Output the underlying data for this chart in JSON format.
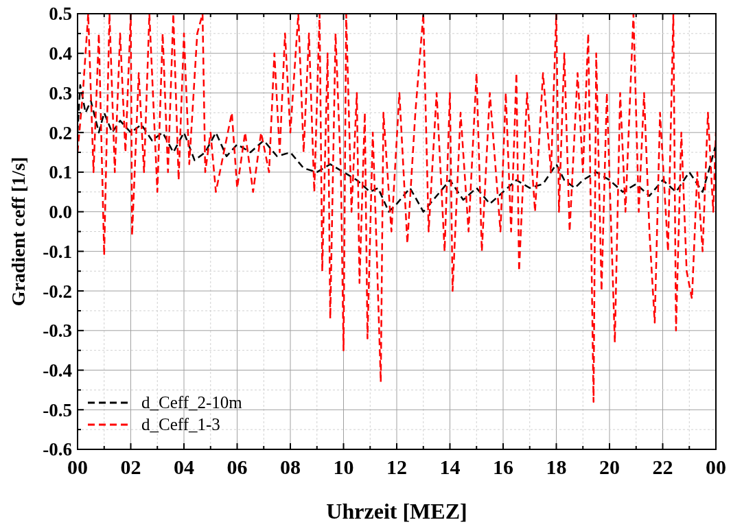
{
  "chart_data": {
    "type": "line",
    "xlabel": "Uhrzeit [MEZ]",
    "ylabel": "Gradient ceff [1/s]",
    "xlim": [
      0,
      24
    ],
    "ylim": [
      -0.6,
      0.5
    ],
    "xticks": [
      {
        "value": 0,
        "label": "00"
      },
      {
        "value": 1,
        "label": null
      },
      {
        "value": 2,
        "label": "02"
      },
      {
        "value": 3,
        "label": null
      },
      {
        "value": 4,
        "label": "04"
      },
      {
        "value": 5,
        "label": null
      },
      {
        "value": 6,
        "label": "06"
      },
      {
        "value": 7,
        "label": null
      },
      {
        "value": 8,
        "label": "08"
      },
      {
        "value": 9,
        "label": null
      },
      {
        "value": 10,
        "label": "10"
      },
      {
        "value": 11,
        "label": null
      },
      {
        "value": 12,
        "label": "12"
      },
      {
        "value": 13,
        "label": null
      },
      {
        "value": 14,
        "label": "14"
      },
      {
        "value": 15,
        "label": null
      },
      {
        "value": 16,
        "label": "16"
      },
      {
        "value": 17,
        "label": null
      },
      {
        "value": 18,
        "label": "18"
      },
      {
        "value": 19,
        "label": null
      },
      {
        "value": 20,
        "label": "20"
      },
      {
        "value": 21,
        "label": null
      },
      {
        "value": 22,
        "label": "22"
      },
      {
        "value": 23,
        "label": null
      },
      {
        "value": 24,
        "label": "00"
      }
    ],
    "yticks": [
      -0.6,
      {
        "value": -0.55,
        "label": null
      },
      -0.5,
      {
        "value": -0.45,
        "label": null
      },
      -0.4,
      {
        "value": -0.35,
        "label": null
      },
      -0.3,
      {
        "value": -0.25,
        "label": null
      },
      -0.2,
      {
        "value": -0.15,
        "label": null
      },
      -0.1,
      {
        "value": -0.05,
        "label": null
      },
      {
        "value": 0,
        "label": "0.0"
      },
      {
        "value": 0.05,
        "label": null
      },
      0.1,
      {
        "value": 0.15,
        "label": null
      },
      0.2,
      {
        "value": 0.25,
        "label": null
      },
      0.3,
      {
        "value": 0.35,
        "label": null
      },
      0.4,
      {
        "value": 0.45,
        "label": null
      },
      0.5
    ],
    "grid": true,
    "legend": "bottom left",
    "line_style": "dashed",
    "series": [
      {
        "name": "d_Ceff_2-10m",
        "color": "#000000",
        "x": [
          0,
          0.1,
          0.3,
          0.5,
          0.8,
          1.0,
          1.3,
          1.6,
          2.0,
          2.4,
          2.8,
          3.2,
          3.6,
          4.0,
          4.4,
          4.8,
          5.2,
          5.6,
          6.0,
          6.5,
          7.0,
          7.5,
          8.0,
          8.5,
          9.0,
          9.5,
          10.0,
          10.5,
          11.0,
          11.3,
          11.7,
          12.0,
          12.5,
          13.0,
          13.5,
          14.0,
          14.5,
          15.0,
          15.5,
          16.0,
          16.5,
          17.0,
          17.5,
          18.0,
          18.3,
          18.7,
          19.0,
          19.5,
          20.0,
          20.5,
          21.0,
          21.5,
          22.0,
          22.5,
          23.0,
          23.5,
          23.8,
          24
        ],
        "values": [
          0.2,
          0.32,
          0.25,
          0.28,
          0.2,
          0.25,
          0.2,
          0.23,
          0.2,
          0.22,
          0.18,
          0.2,
          0.15,
          0.2,
          0.13,
          0.15,
          0.2,
          0.14,
          0.17,
          0.15,
          0.18,
          0.14,
          0.15,
          0.11,
          0.1,
          0.12,
          0.1,
          0.08,
          0.05,
          0.06,
          0.0,
          0.02,
          0.06,
          0.0,
          0.04,
          0.08,
          0.03,
          0.06,
          0.02,
          0.05,
          0.08,
          0.06,
          0.07,
          0.12,
          0.08,
          0.06,
          0.08,
          0.1,
          0.08,
          0.05,
          0.07,
          0.04,
          0.08,
          0.05,
          0.1,
          0.05,
          0.12,
          0.17
        ]
      },
      {
        "name": "d_Ceff_1-3",
        "color": "#ff0000",
        "x": [
          0,
          0.2,
          0.4,
          0.6,
          0.8,
          1.0,
          1.2,
          1.4,
          1.6,
          1.8,
          2.0,
          2.05,
          2.3,
          2.5,
          2.7,
          3.0,
          3.2,
          3.4,
          3.6,
          3.8,
          4.0,
          4.2,
          4.5,
          4.7,
          4.8,
          5.0,
          5.2,
          5.5,
          5.8,
          6.0,
          6.3,
          6.6,
          6.9,
          7.2,
          7.4,
          7.6,
          7.8,
          8.0,
          8.3,
          8.5,
          8.7,
          8.9,
          9.1,
          9.2,
          9.4,
          9.5,
          9.7,
          9.9,
          10.0,
          10.1,
          10.3,
          10.5,
          10.6,
          10.8,
          10.9,
          11.1,
          11.2,
          11.4,
          11.5,
          11.8,
          12.1,
          12.4,
          12.7,
          13.0,
          13.2,
          13.5,
          13.8,
          14.0,
          14.1,
          14.4,
          14.7,
          15.0,
          15.2,
          15.5,
          15.9,
          16.1,
          16.3,
          16.5,
          16.6,
          16.9,
          17.2,
          17.5,
          17.8,
          18.0,
          18.1,
          18.3,
          18.5,
          18.8,
          19.0,
          19.2,
          19.4,
          19.5,
          19.7,
          19.9,
          20.2,
          20.4,
          20.6,
          20.9,
          21.1,
          21.3,
          21.5,
          21.7,
          21.9,
          22.2,
          22.4,
          22.5,
          22.7,
          22.9,
          23.1,
          23.3,
          23.5,
          23.7,
          23.9,
          24
        ],
        "values": [
          0.15,
          0.3,
          0.5,
          0.1,
          0.45,
          -0.11,
          0.5,
          0.1,
          0.45,
          0.15,
          0.5,
          -0.06,
          0.35,
          0.1,
          0.5,
          0.05,
          0.45,
          0.1,
          0.5,
          0.08,
          0.45,
          0.12,
          0.45,
          0.5,
          0.1,
          0.2,
          0.05,
          0.15,
          0.25,
          0.06,
          0.2,
          0.05,
          0.2,
          0.1,
          0.4,
          0.15,
          0.45,
          0.2,
          0.5,
          0.15,
          0.45,
          0.05,
          0.5,
          -0.15,
          0.4,
          -0.27,
          0.45,
          0.1,
          -0.35,
          0.5,
          0.0,
          0.3,
          -0.18,
          0.25,
          -0.32,
          0.2,
          0.0,
          -0.43,
          0.25,
          -0.05,
          0.3,
          -0.08,
          0.25,
          0.5,
          -0.05,
          0.3,
          -0.1,
          0.3,
          -0.2,
          0.25,
          -0.05,
          0.35,
          -0.1,
          0.3,
          -0.05,
          0.3,
          -0.05,
          0.35,
          -0.15,
          0.3,
          0.0,
          0.35,
          0.1,
          0.5,
          0.0,
          0.4,
          -0.05,
          0.35,
          0.1,
          0.45,
          -0.48,
          0.4,
          -0.2,
          0.3,
          -0.33,
          0.3,
          0.0,
          0.5,
          0.0,
          0.3,
          -0.05,
          -0.28,
          0.25,
          -0.1,
          0.5,
          -0.3,
          0.2,
          -0.15,
          -0.22,
          0.1,
          -0.1,
          0.25,
          0.0,
          0.2
        ]
      }
    ]
  }
}
